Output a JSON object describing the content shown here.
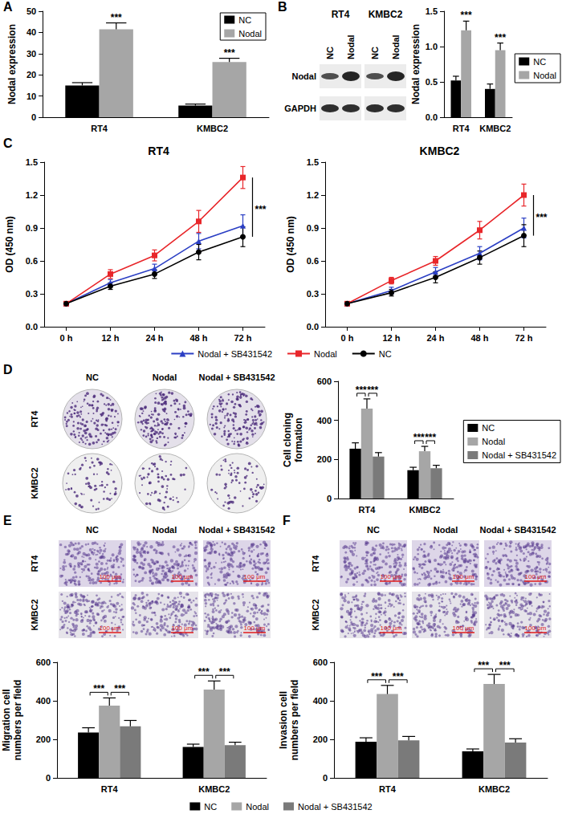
{
  "chart_data": [
    {
      "panel": "A",
      "type": "bar",
      "ylabel": "Nodal expression",
      "categories": [
        "RT4",
        "KMBC2"
      ],
      "series": [
        {
          "name": "NC",
          "color": "#000000",
          "values": [
            15,
            5.5
          ],
          "errors": [
            1.3,
            0.7
          ]
        },
        {
          "name": "Nodal",
          "color": "#a6a6a6",
          "values": [
            41.5,
            26
          ],
          "errors": [
            3,
            1.8
          ]
        }
      ],
      "ylim": [
        0,
        50
      ],
      "yticks": [
        0,
        10,
        20,
        30,
        40,
        50
      ],
      "grid": false,
      "legend": "upper right",
      "annotations": [
        {
          "category": "RT4",
          "series": "Nodal",
          "text": "***"
        },
        {
          "category": "KMBC2",
          "series": "Nodal",
          "text": "***"
        }
      ]
    },
    {
      "panel": "B",
      "type": "bar",
      "ylabel": "Nodal expression",
      "categories": [
        "RT4",
        "KMBC2"
      ],
      "series": [
        {
          "name": "NC",
          "color": "#000000",
          "values": [
            0.52,
            0.4
          ],
          "errors": [
            0.06,
            0.07
          ]
        },
        {
          "name": "Nodal",
          "color": "#a6a6a6",
          "values": [
            1.23,
            0.95
          ],
          "errors": [
            0.13,
            0.1
          ]
        }
      ],
      "ylim": [
        0,
        1.5
      ],
      "yticks": [
        {
          "value": 0,
          "label": "0.0"
        },
        0.5,
        {
          "value": 1,
          "label": "1.0"
        },
        1.5
      ],
      "grid": false,
      "legend": "right",
      "annotations": [
        {
          "category": "RT4",
          "series": "Nodal",
          "text": "***"
        },
        {
          "category": "KMBC2",
          "series": "Nodal",
          "text": "***"
        }
      ]
    },
    {
      "panel": "C",
      "type": "line",
      "title": "RT4",
      "ylabel": "OD (450 nm)",
      "categories": [
        "0 h",
        "12 h",
        "24 h",
        "48 h",
        "72 h"
      ],
      "series": [
        {
          "name": "Nodal + SB431542",
          "color": "#2b3fc4",
          "marker": "triangle",
          "values": [
            0.21,
            0.4,
            0.53,
            0.78,
            0.92
          ],
          "errors": [
            0.01,
            0.03,
            0.04,
            0.07,
            0.1
          ]
        },
        {
          "name": "Nodal",
          "color": "#e8262a",
          "marker": "square",
          "values": [
            0.21,
            0.48,
            0.65,
            0.96,
            1.36
          ],
          "errors": [
            0.01,
            0.04,
            0.05,
            0.1,
            0.1
          ]
        },
        {
          "name": "NC",
          "color": "#000000",
          "marker": "circle",
          "values": [
            0.21,
            0.37,
            0.48,
            0.68,
            0.82
          ],
          "errors": [
            0.01,
            0.03,
            0.04,
            0.07,
            0.09
          ]
        }
      ],
      "ylim": [
        0,
        1.5
      ],
      "yticks": [
        {
          "value": 0,
          "label": "0.0"
        },
        0.3,
        0.6,
        0.9,
        1.2,
        1.5
      ],
      "grid": false,
      "legend": "bottom",
      "annotations": [
        {
          "category": "72 h",
          "from": "Nodal",
          "to": "NC",
          "text": "***"
        }
      ]
    },
    {
      "panel": "C",
      "type": "line",
      "title": "KMBC2",
      "ylabel": "OD (450 nm)",
      "categories": [
        "0 h",
        "12 h",
        "24 h",
        "48 h",
        "72 h"
      ],
      "series": [
        {
          "name": "Nodal + SB431542",
          "color": "#2b3fc4",
          "marker": "triangle",
          "values": [
            0.21,
            0.33,
            0.5,
            0.67,
            0.9
          ],
          "errors": [
            0.01,
            0.03,
            0.04,
            0.06,
            0.09
          ]
        },
        {
          "name": "Nodal",
          "color": "#e8262a",
          "marker": "square",
          "values": [
            0.21,
            0.42,
            0.6,
            0.88,
            1.2
          ],
          "errors": [
            0.01,
            0.03,
            0.04,
            0.08,
            0.1
          ]
        },
        {
          "name": "NC",
          "color": "#000000",
          "marker": "circle",
          "values": [
            0.21,
            0.31,
            0.45,
            0.63,
            0.83
          ],
          "errors": [
            0.01,
            0.03,
            0.05,
            0.06,
            0.1
          ]
        }
      ],
      "ylim": [
        0,
        1.5
      ],
      "yticks": [
        {
          "value": 0,
          "label": "0.0"
        },
        0.3,
        0.6,
        0.9,
        1.2,
        1.5
      ],
      "grid": false,
      "legend": "bottom",
      "annotations": [
        {
          "category": "72 h",
          "from": "Nodal",
          "to": "NC",
          "text": "***"
        }
      ]
    },
    {
      "panel": "D",
      "type": "bar",
      "ylabel": "Cell cloning\nformation",
      "categories": [
        "RT4",
        "KMBC2"
      ],
      "series": [
        {
          "name": "NC",
          "color": "#000000",
          "values": [
            255,
            145
          ],
          "errors": [
            30,
            15
          ]
        },
        {
          "name": "Nodal",
          "color": "#a6a6a6",
          "values": [
            460,
            242
          ],
          "errors": [
            50,
            25
          ]
        },
        {
          "name": "Nodal + SB431542",
          "color": "#7a7a7a",
          "values": [
            215,
            155
          ],
          "errors": [
            20,
            15
          ]
        }
      ],
      "ylim": [
        0,
        600
      ],
      "yticks": [
        0,
        200,
        400,
        600
      ],
      "grid": false,
      "legend": "right",
      "annotations": [
        {
          "category": "RT4",
          "from": "NC",
          "to": "Nodal",
          "text": "***"
        },
        {
          "category": "RT4",
          "from": "Nodal",
          "to": "Nodal + SB431542",
          "text": "***"
        },
        {
          "category": "KMBC2",
          "from": "NC",
          "to": "Nodal",
          "text": "***"
        },
        {
          "category": "KMBC2",
          "from": "Nodal",
          "to": "Nodal + SB431542",
          "text": "***"
        }
      ]
    },
    {
      "panel": "E",
      "type": "bar",
      "ylabel": "Migration cell\nnumbers per field",
      "categories": [
        "RT4",
        "KMBC2"
      ],
      "series": [
        {
          "name": "NC",
          "color": "#000000",
          "values": [
            235,
            160
          ],
          "errors": [
            25,
            15
          ]
        },
        {
          "name": "Nodal",
          "color": "#a6a6a6",
          "values": [
            375,
            458
          ],
          "errors": [
            40,
            45
          ]
        },
        {
          "name": "Nodal + SB431542",
          "color": "#7a7a7a",
          "values": [
            268,
            170
          ],
          "errors": [
            30,
            15
          ]
        }
      ],
      "ylim": [
        0,
        600
      ],
      "yticks": [
        0,
        200,
        400,
        600
      ],
      "grid": false,
      "legend": "bottom",
      "annotations": [
        {
          "category": "RT4",
          "from": "NC",
          "to": "Nodal",
          "text": "***"
        },
        {
          "category": "RT4",
          "from": "Nodal",
          "to": "Nodal + SB431542",
          "text": "***"
        },
        {
          "category": "KMBC2",
          "from": "NC",
          "to": "Nodal",
          "text": "***"
        },
        {
          "category": "KMBC2",
          "from": "Nodal",
          "to": "Nodal + SB431542",
          "text": "***"
        }
      ]
    },
    {
      "panel": "F",
      "type": "bar",
      "ylabel": "Invasion cell\nnumbers per field",
      "categories": [
        "RT4",
        "KMBC2"
      ],
      "series": [
        {
          "name": "NC",
          "color": "#000000",
          "values": [
            188,
            138
          ],
          "errors": [
            20,
            12
          ]
        },
        {
          "name": "Nodal",
          "color": "#a6a6a6",
          "values": [
            435,
            487
          ],
          "errors": [
            45,
            50
          ]
        },
        {
          "name": "Nodal + SB431542",
          "color": "#7a7a7a",
          "values": [
            195,
            183
          ],
          "errors": [
            20,
            20
          ]
        }
      ],
      "ylim": [
        0,
        600
      ],
      "yticks": [
        0,
        200,
        400,
        600
      ],
      "grid": false,
      "legend": "bottom",
      "annotations": [
        {
          "category": "RT4",
          "from": "NC",
          "to": "Nodal",
          "text": "***"
        },
        {
          "category": "RT4",
          "from": "Nodal",
          "to": "Nodal + SB431542",
          "text": "***"
        },
        {
          "category": "KMBC2",
          "from": "NC",
          "to": "Nodal",
          "text": "***"
        },
        {
          "category": "KMBC2",
          "from": "Nodal",
          "to": "Nodal + SB431542",
          "text": "***"
        }
      ]
    }
  ],
  "images": [
    {
      "panel": "B",
      "type": "western_blot",
      "groups": [
        "RT4",
        "KMBC2"
      ],
      "lanes": [
        "NC",
        "Nodal"
      ],
      "rows": [
        "Nodal",
        "GAPDH"
      ]
    },
    {
      "panel": "D",
      "type": "colony",
      "columns": [
        "NC",
        "Nodal",
        "Nodal + SB431542"
      ],
      "rows": [
        "RT4",
        "KMBC2"
      ]
    },
    {
      "panel": "E",
      "type": "transwell",
      "columns": [
        "NC",
        "Nodal",
        "Nodal + SB431542"
      ],
      "rows": [
        "RT4",
        "KMBC2"
      ],
      "scale_bar": "100 μm"
    },
    {
      "panel": "F",
      "type": "transwell",
      "columns": [
        "NC",
        "Nodal",
        "Nodal + SB431542"
      ],
      "rows": [
        "RT4",
        "KMBC2"
      ],
      "scale_bar": "100 μm"
    }
  ]
}
